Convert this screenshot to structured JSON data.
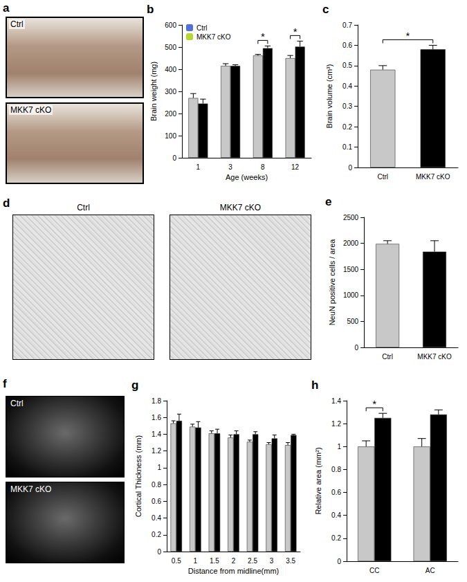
{
  "chart_data": [
    {
      "panel": "b",
      "type": "bar",
      "categories": [
        "1",
        "3",
        "8",
        "12"
      ],
      "xlabel": "Age (weeks)",
      "ylabel": "Brain weight (mg)",
      "series": [
        {
          "name": "Ctrl",
          "color": "#c8c8c8",
          "values": [
            270,
            415,
            462,
            450
          ],
          "errors": [
            20,
            10,
            5,
            12
          ]
        },
        {
          "name": "MKK7 cKO",
          "color": "#000000",
          "values": [
            245,
            415,
            495,
            502
          ],
          "errors": [
            20,
            5,
            10,
            25
          ]
        }
      ],
      "ylim": [
        0,
        600
      ],
      "yticks": [
        0,
        100,
        200,
        300,
        400,
        500,
        600
      ],
      "grid": false,
      "legend": "upper left",
      "annotations": [
        {
          "text": "*",
          "category": "8"
        },
        {
          "text": "*",
          "category": "12"
        }
      ]
    },
    {
      "panel": "c",
      "type": "bar",
      "categories": [
        "Ctrl",
        "MKK7 cKO"
      ],
      "ylabel": "Brain volume (cm³)",
      "values": [
        0.48,
        0.58
      ],
      "errors": [
        0.02,
        0.02
      ],
      "colors": [
        "#c8c8c8",
        "#000000"
      ],
      "ylim": [
        0,
        0.7
      ],
      "yticks": [
        0,
        0.1,
        0.2,
        0.3,
        0.4,
        0.5,
        0.6,
        0.7
      ],
      "grid": false,
      "annotations": [
        {
          "text": "*",
          "between": [
            "Ctrl",
            "MKK7 cKO"
          ]
        }
      ]
    },
    {
      "panel": "e",
      "type": "bar",
      "categories": [
        "Ctrl",
        "MKK7 cKO"
      ],
      "ylabel": "NeuN positive cells / area",
      "values": [
        1990,
        1840
      ],
      "errors": [
        60,
        210
      ],
      "colors": [
        "#c8c8c8",
        "#000000"
      ],
      "ylim": [
        0,
        2500
      ],
      "yticks": [
        0,
        500,
        1000,
        1500,
        2000,
        2500
      ],
      "grid": false
    },
    {
      "panel": "g",
      "type": "bar",
      "categories": [
        "0.5",
        "1",
        "1.5",
        "2",
        "2.5",
        "3",
        "3.5"
      ],
      "xlabel": "Distance from midline(mm)",
      "ylabel": "Cortical Thickness (mm)",
      "series": [
        {
          "name": "Ctrl",
          "color": "#c8c8c8",
          "values": [
            1.53,
            1.49,
            1.41,
            1.36,
            1.31,
            1.28,
            1.27
          ],
          "errors": [
            0.03,
            0.03,
            0.03,
            0.03,
            0.02,
            0.02,
            0.03
          ]
        },
        {
          "name": "MKK7 cKO",
          "color": "#000000",
          "values": [
            1.56,
            1.48,
            1.41,
            1.4,
            1.4,
            1.35,
            1.39
          ],
          "errors": [
            0.08,
            0.07,
            0.05,
            0.04,
            0.03,
            0.04,
            0.01
          ]
        }
      ],
      "ylim": [
        0,
        1.8
      ],
      "yticks": [
        0,
        0.2,
        0.4,
        0.6,
        0.8,
        1,
        1.2,
        1.4,
        1.6,
        1.8
      ],
      "grid": false
    },
    {
      "panel": "h",
      "type": "bar",
      "categories": [
        "CC",
        "AC"
      ],
      "ylabel": "Relative area (mm²)",
      "series": [
        {
          "name": "Ctrl",
          "color": "#c8c8c8",
          "values": [
            1.0,
            1.0
          ],
          "errors": [
            0.05,
            0.07
          ]
        },
        {
          "name": "MKK7 cKO",
          "color": "#000000",
          "values": [
            1.25,
            1.28
          ],
          "errors": [
            0.04,
            0.04
          ]
        }
      ],
      "ylim": [
        0,
        1.4
      ],
      "yticks": [
        0,
        0.2,
        0.4,
        0.6,
        0.8,
        1,
        1.2,
        1.4
      ],
      "grid": false,
      "annotations": [
        {
          "text": "*",
          "category": "CC"
        }
      ]
    }
  ],
  "images": [
    {
      "panel": "a",
      "labels": [
        "Ctrl",
        "MKK7 cKO"
      ]
    },
    {
      "panel": "d",
      "labels": [
        "Ctrl",
        "MKK7 cKO"
      ]
    },
    {
      "panel": "f",
      "labels": [
        "Ctrl",
        "MKK7 cKO"
      ]
    }
  ]
}
